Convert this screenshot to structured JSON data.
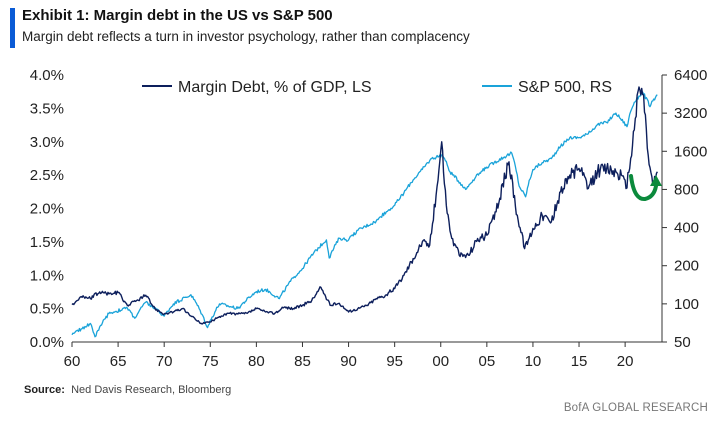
{
  "header": {
    "title": "Exhibit 1: Margin debt in the US vs S&P 500",
    "subtitle": "Margin debt reflects a turn in investor psychology, rather than complacency"
  },
  "footer": {
    "source_label": "Source:",
    "source_text": "Ned Davis Research, Bloomberg",
    "brand": "BofA GLOBAL RESEARCH"
  },
  "colors": {
    "margin_debt": "#0d1f5c",
    "sp500": "#1aa3d9",
    "arrow": "#0b8a3c",
    "accent": "#0a5bd6"
  },
  "chart_data": {
    "type": "line",
    "title": "Exhibit 1: Margin debt in the US vs S&P 500",
    "x_tick_labels": [
      "60",
      "65",
      "70",
      "75",
      "80",
      "85",
      "90",
      "95",
      "00",
      "05",
      "10",
      "15",
      "20"
    ],
    "x_tick_years": [
      1960,
      1965,
      1970,
      1975,
      1980,
      1985,
      1990,
      1995,
      2000,
      2005,
      2010,
      2015,
      2020
    ],
    "xlim": [
      1960,
      2024
    ],
    "y_left": {
      "ticks": [
        "4.0%",
        "3.5%",
        "3.0%",
        "2.5%",
        "2.0%",
        "1.5%",
        "1.0%",
        "0.5%",
        "0.0%"
      ],
      "ylim": [
        0,
        4.0
      ],
      "unit": "% of GDP"
    },
    "y_right": {
      "ticks": [
        "6400",
        "3200",
        "1600",
        "800",
        "400",
        "200",
        "100",
        "50"
      ],
      "ylim": [
        50,
        6400
      ],
      "scale": "log"
    },
    "legend": [
      "Margin Debt, % of GDP, LS",
      "S&P 500, RS"
    ],
    "series": [
      {
        "name": "Margin Debt, % of GDP, LS",
        "axis": "left",
        "x": [
          1960,
          1961,
          1962,
          1963,
          1964,
          1965,
          1966,
          1967,
          1968,
          1969,
          1970,
          1971,
          1972,
          1973,
          1974,
          1975,
          1976,
          1977,
          1978,
          1979,
          1980,
          1981,
          1982,
          1983,
          1984,
          1985,
          1986,
          1987,
          1988,
          1989,
          1990,
          1991,
          1992,
          1993,
          1994,
          1995,
          1996,
          1997,
          1998,
          1998.8,
          1999.5,
          2000.1,
          2000.6,
          2001.2,
          2002,
          2003,
          2004,
          2005,
          2006,
          2007.4,
          2008.3,
          2009.1,
          2010,
          2011,
          2012,
          2013,
          2014,
          2015,
          2016,
          2017,
          2018,
          2019,
          2019.6,
          2020.1,
          2020.6,
          2021.1,
          2021.5,
          2022,
          2022.5,
          2023,
          2023.5
        ],
        "values": [
          0.56,
          0.68,
          0.65,
          0.75,
          0.72,
          0.74,
          0.55,
          0.62,
          0.7,
          0.5,
          0.42,
          0.45,
          0.5,
          0.38,
          0.28,
          0.3,
          0.38,
          0.43,
          0.42,
          0.43,
          0.5,
          0.45,
          0.43,
          0.52,
          0.5,
          0.55,
          0.62,
          0.82,
          0.55,
          0.58,
          0.45,
          0.5,
          0.55,
          0.65,
          0.7,
          0.8,
          1.0,
          1.25,
          1.5,
          1.45,
          2.2,
          3.0,
          2.05,
          1.55,
          1.3,
          1.3,
          1.55,
          1.6,
          1.95,
          2.7,
          1.9,
          1.4,
          1.7,
          1.9,
          1.8,
          2.25,
          2.5,
          2.6,
          2.3,
          2.55,
          2.6,
          2.55,
          2.5,
          2.3,
          2.75,
          3.35,
          3.82,
          3.7,
          2.8,
          2.35,
          2.55
        ]
      },
      {
        "name": "S&P 500, RS",
        "axis": "right",
        "x": [
          1960,
          1962,
          1962.5,
          1964,
          1966,
          1966.8,
          1968,
          1970,
          1971,
          1972.9,
          1974.7,
          1976,
          1978,
          1980,
          1981,
          1982.5,
          1984,
          1985,
          1987.6,
          1987.9,
          1989,
          1990,
          1991,
          1993,
          1995,
          1996,
          1997,
          1998,
          1999,
          2000.2,
          2001,
          2002.7,
          2003.5,
          2005,
          2007.7,
          2008.5,
          2009.2,
          2010,
          2011,
          2012,
          2013,
          2014,
          2015,
          2016,
          2017,
          2018,
          2019,
          2020.2,
          2020.6,
          2021,
          2021.9,
          2022.7,
          2023,
          2023.5
        ],
        "values": [
          57,
          70,
          55,
          84,
          93,
          77,
          103,
          80,
          100,
          118,
          65,
          100,
          92,
          125,
          130,
          110,
          160,
          190,
          320,
          230,
          330,
          320,
          380,
          450,
          600,
          750,
          950,
          1150,
          1400,
          1500,
          1100,
          800,
          950,
          1200,
          1550,
          850,
          700,
          1150,
          1300,
          1400,
          1750,
          2050,
          2050,
          2200,
          2600,
          2700,
          3200,
          2500,
          3300,
          3900,
          4700,
          3600,
          4000,
          4450
        ]
      }
    ]
  }
}
